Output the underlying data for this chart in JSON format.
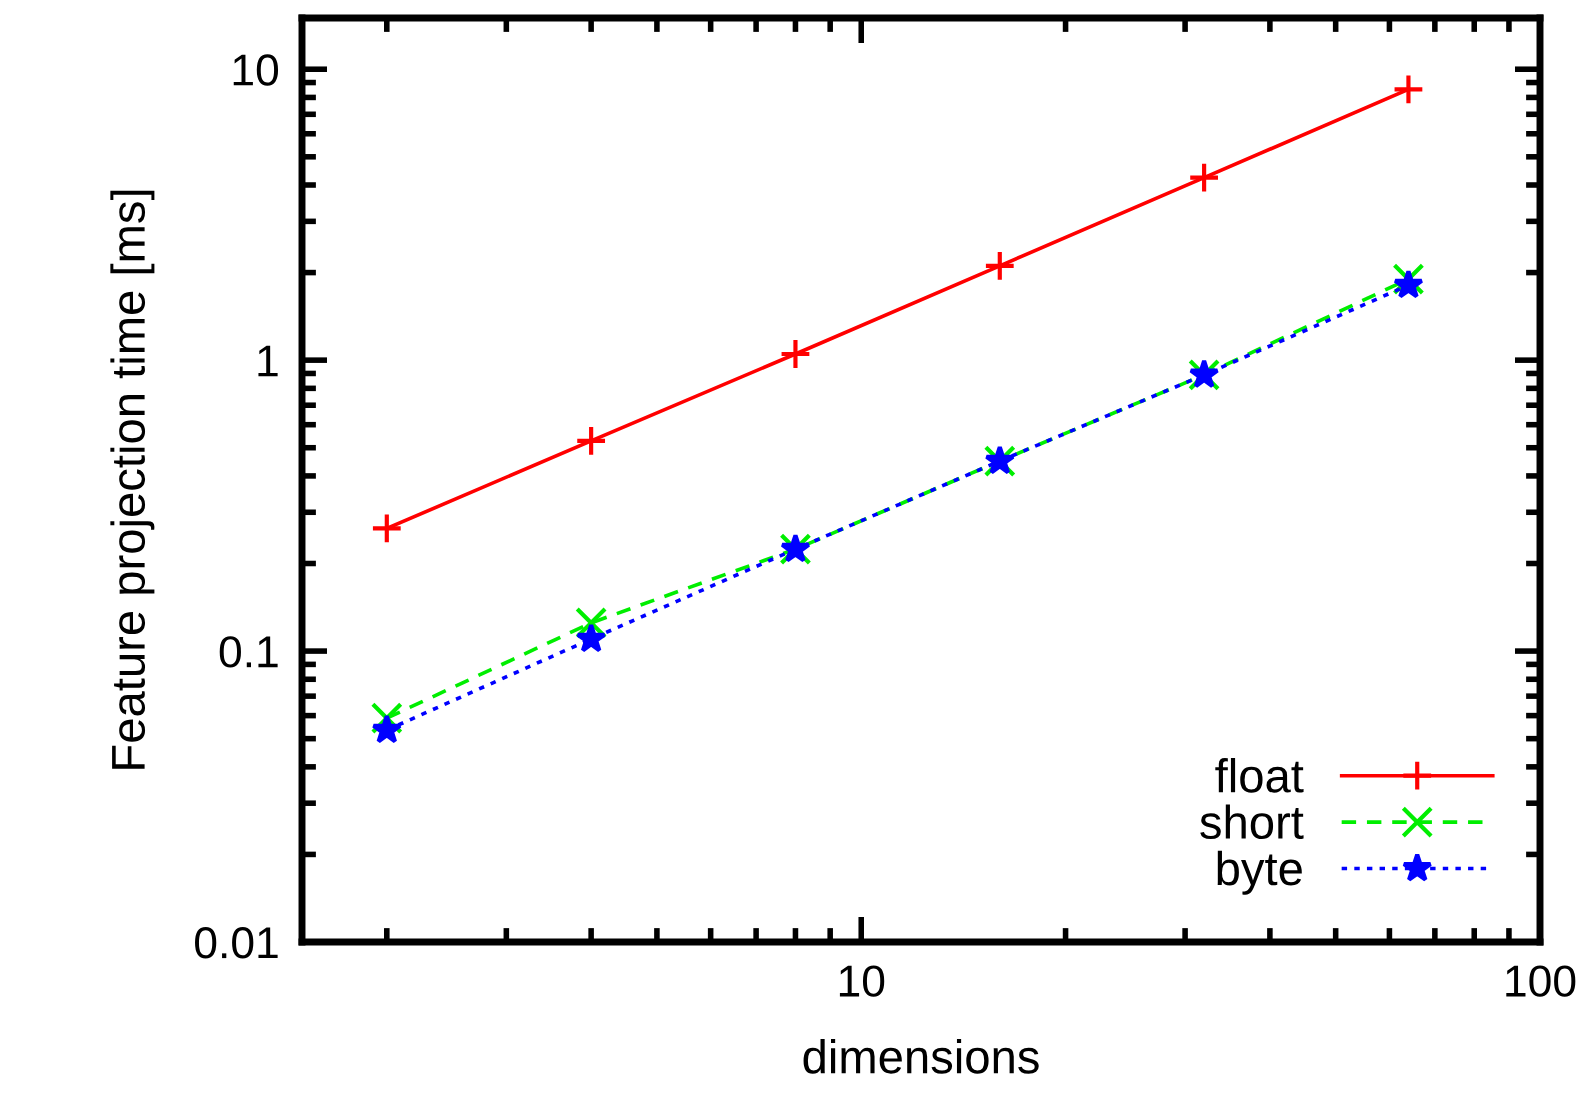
{
  "chart_data": {
    "type": "line",
    "xlabel": "dimensions",
    "ylabel": "Feature projection time [ms]",
    "log": "xy",
    "x": [
      2,
      4,
      8,
      16,
      32,
      64
    ],
    "xlim": [
      1.5,
      100
    ],
    "xticks": [
      10,
      100
    ],
    "ylim": [
      0.01,
      15
    ],
    "yticks": [
      0.01,
      0.1,
      1,
      10
    ],
    "grid": false,
    "legend": "bottom right",
    "series": [
      {
        "name": "float",
        "color": "#ff0000",
        "marker": "plus",
        "line_style": "solid",
        "values": [
          0.264,
          0.528,
          1.05,
          2.11,
          4.24,
          8.53
        ]
      },
      {
        "name": "short",
        "color": "#00ee00",
        "marker": "x",
        "line_style": "dashed",
        "values": [
          0.0588,
          0.125,
          0.224,
          0.45,
          0.89,
          1.9
        ]
      },
      {
        "name": "byte",
        "color": "#0000ff",
        "marker": "star",
        "line_style": "dotted",
        "values": [
          0.0535,
          0.11,
          0.224,
          0.45,
          0.89,
          1.81
        ]
      }
    ]
  }
}
